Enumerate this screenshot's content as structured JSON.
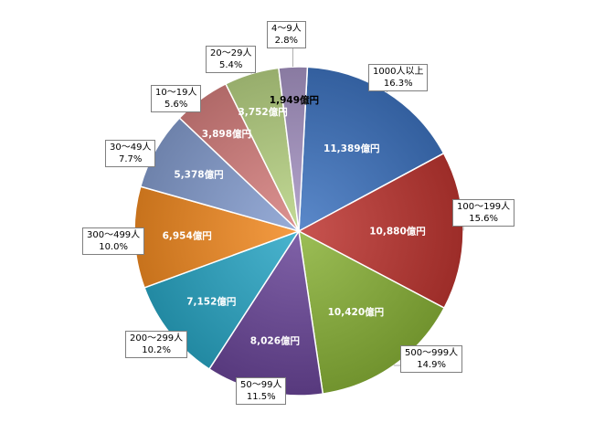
{
  "chart_data": {
    "type": "pie",
    "title": "",
    "legend": "none",
    "unit": "億円",
    "slices": [
      {
        "label": "1000人以上",
        "value": 11389,
        "value_label": "11,389億円",
        "percent": "16.3%",
        "color": "#3e74c1"
      },
      {
        "label": "100〜199人",
        "value": 10880,
        "value_label": "10,880億円",
        "percent": "15.6%",
        "color": "#be3631"
      },
      {
        "label": "500〜999人",
        "value": 10420,
        "value_label": "10,420億円",
        "percent": "14.9%",
        "color": "#8ab338"
      },
      {
        "label": "50〜99人",
        "value": 8026,
        "value_label": "8,026億円",
        "percent": "11.5%",
        "color": "#6a4699"
      },
      {
        "label": "200〜299人",
        "value": 7152,
        "value_label": "7,152億円",
        "percent": "10.2%",
        "color": "#2aa7c6"
      },
      {
        "label": "300〜499人",
        "value": 6954,
        "value_label": "6,954億円",
        "percent": "10.0%",
        "color": "#f38b22"
      },
      {
        "label": "30〜49人",
        "value": 5378,
        "value_label": "5,378億円",
        "percent": "7.7%",
        "color": "#869ed1"
      },
      {
        "label": "10〜19人",
        "value": 3898,
        "value_label": "3,898億円",
        "percent": "5.6%",
        "color": "#d7807f"
      },
      {
        "label": "20〜29人",
        "value": 3752,
        "value_label": "3,752億円",
        "percent": "5.4%",
        "color": "#b8d384"
      },
      {
        "label": "4〜9人",
        "value": 1949,
        "value_label": "1,949億円",
        "percent": "2.8%",
        "color": "#a795c4"
      }
    ]
  }
}
